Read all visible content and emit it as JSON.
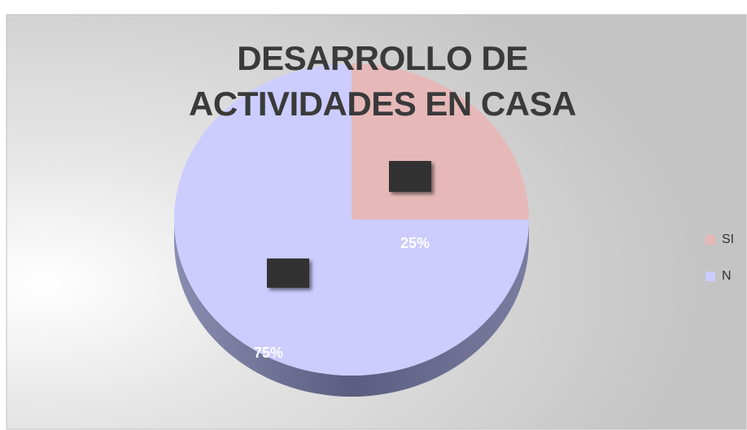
{
  "chart_data": {
    "type": "pie",
    "title": "DESARROLLO DE ACTIVIDADES EN CASA",
    "categories": [
      "SI",
      "N"
    ],
    "values": [
      25,
      75
    ],
    "value_labels": [
      "25%",
      "75%"
    ],
    "colors": [
      "#e6b9b8",
      "#ccccff"
    ],
    "legend": "right"
  }
}
